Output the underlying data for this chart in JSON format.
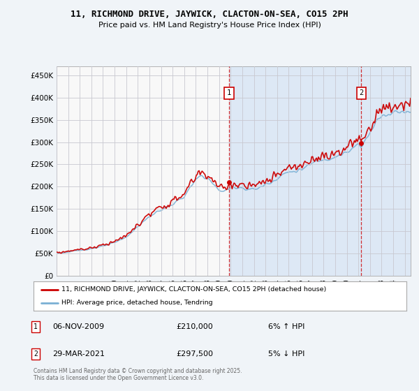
{
  "title": "11, RICHMOND DRIVE, JAYWICK, CLACTON-ON-SEA, CO15 2PH",
  "subtitle": "Price paid vs. HM Land Registry's House Price Index (HPI)",
  "ylim": [
    0,
    470000
  ],
  "yticks": [
    0,
    50000,
    100000,
    150000,
    200000,
    250000,
    300000,
    350000,
    400000,
    450000
  ],
  "bg_color": "#f0f4f8",
  "plot_bg_left": "#f5f5f5",
  "plot_bg_right": "#dde8f5",
  "grid_color": "#cccccc",
  "red_color": "#cc0000",
  "blue_color": "#7ab0d4",
  "annotation1": {
    "label": "1",
    "year": 2009.85,
    "price": 210000,
    "x_label": "06-NOV-2009",
    "price_label": "£210,000",
    "pct_label": "6% ↑ HPI"
  },
  "annotation2": {
    "label": "2",
    "year": 2021.25,
    "price": 297500,
    "x_label": "29-MAR-2021",
    "price_label": "£297,500",
    "pct_label": "5% ↓ HPI"
  },
  "legend_line1": "11, RICHMOND DRIVE, JAYWICK, CLACTON-ON-SEA, CO15 2PH (detached house)",
  "legend_line2": "HPI: Average price, detached house, Tendring",
  "footnote": "Contains HM Land Registry data © Crown copyright and database right 2025.\nThis data is licensed under the Open Government Licence v3.0.",
  "xlim_start": 1995,
  "xlim_end": 2025.5
}
